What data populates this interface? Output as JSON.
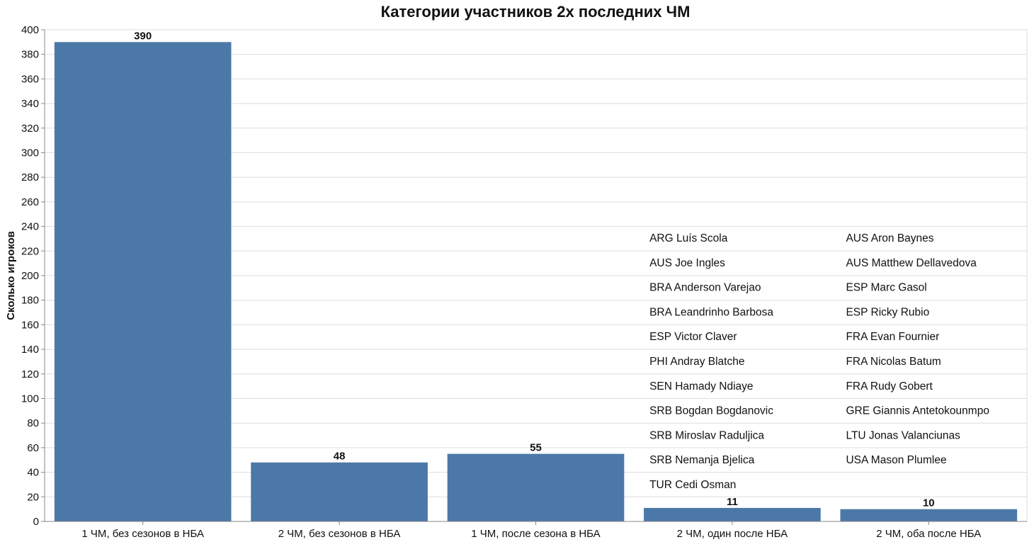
{
  "chart_data": {
    "type": "bar",
    "title": "Категории участников 2х последних ЧМ",
    "ylabel": "Сколько игроков",
    "xlabel": "",
    "ylim": [
      0,
      400
    ],
    "ytick_step": 20,
    "grid": true,
    "color": "#4c78a8",
    "categories": [
      "1 ЧМ, без сезонов в НБА",
      "2 ЧМ, без сезонов в НБА",
      "1 ЧМ, после сезона в НБА",
      "2 ЧМ, один после НБА",
      "2 ЧМ, оба после НБА"
    ],
    "values": [
      390,
      48,
      55,
      11,
      10
    ],
    "annotations": [
      {
        "category": "2 ЧМ, один после НБА",
        "players": [
          "ARG Luís Scola",
          "AUS Joe Ingles",
          "BRA Anderson Varejao",
          "BRA Leandrinho Barbosa",
          "ESP Victor Claver",
          "PHI Andray Blatche",
          "SEN Hamady Ndiaye",
          "SRB Bogdan Bogdanovic",
          "SRB Miroslav Raduljica",
          "SRB Nemanja Bjelica",
          "TUR Cedi Osman"
        ]
      },
      {
        "category": "2 ЧМ, оба после НБА",
        "players": [
          "AUS Aron Baynes",
          "AUS Matthew Dellavedova",
          "ESP Marc Gasol",
          "ESP Ricky Rubio",
          "FRA Evan Fournier",
          "FRA Nicolas Batum",
          "FRA Rudy Gobert",
          "GRE Giannis Antetokounmpo",
          "LTU Jonas Valanciunas",
          "USA Mason Plumlee"
        ]
      }
    ]
  }
}
